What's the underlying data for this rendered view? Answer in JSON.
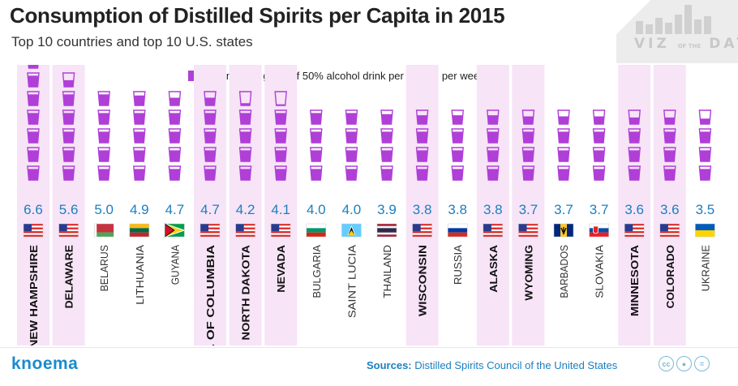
{
  "title": "Consumption of Distilled Spirits per Capita in 2015",
  "subtitle": "Top 10 countries and top 10 U.S. states",
  "branding": {
    "viz_text": "VIZ",
    "of_text": "OF THE",
    "day_text": "DAY",
    "icon": "bar-chart-logo-icon"
  },
  "legend": {
    "text": "– 45 ml shot glass of 50% alcohol drink per person per week",
    "color": "#b03fd8"
  },
  "colors": {
    "glass": "#b03fd8",
    "value": "#1a7fc0",
    "state_band": "#f7e4f7"
  },
  "chart_data": {
    "type": "bar",
    "unit": "45 ml shot glass of 50% alcohol drink per person per week",
    "categories": [
      "NEW HAMPSHIRE",
      "DELAWARE",
      "BELARUS",
      "LITHUANIA",
      "GUYANA",
      "DISTR. OF COLUMBIA",
      "NORTH DAKOTA",
      "NEVADA",
      "BULGARIA",
      "SAINT LUCIA",
      "THAILAND",
      "WISCONSIN",
      "RUSSIA",
      "ALASKA",
      "WYOMING",
      "BARBADOS",
      "SLOVAKIA",
      "MINNESOTA",
      "COLORADO",
      "UKRAINE"
    ],
    "values": [
      6.6,
      5.6,
      5.0,
      4.9,
      4.7,
      4.7,
      4.2,
      4.1,
      4.0,
      4.0,
      3.9,
      3.8,
      3.8,
      3.8,
      3.7,
      3.7,
      3.7,
      3.6,
      3.6,
      3.5
    ],
    "value_labels": [
      "6.6",
      "5.6",
      "5.0",
      "4.9",
      "4.7",
      "4.7",
      "4.2",
      "4.1",
      "4.0",
      "4.0",
      "3.9",
      "3.8",
      "3.8",
      "3.8",
      "3.7",
      "3.7",
      "3.7",
      "3.6",
      "3.6",
      "3.5"
    ],
    "is_us_state": [
      true,
      true,
      false,
      false,
      false,
      true,
      true,
      true,
      false,
      false,
      false,
      true,
      false,
      true,
      true,
      false,
      false,
      true,
      true,
      false
    ],
    "flags": [
      "us",
      "us",
      "belarus",
      "lithuania",
      "guyana",
      "us",
      "us",
      "us",
      "bulgaria",
      "saint-lucia",
      "thailand",
      "us",
      "russia",
      "us",
      "us",
      "barbados",
      "slovakia",
      "us",
      "us",
      "ukraine"
    ]
  },
  "footer": {
    "brand": "knoema",
    "sources_label": "Sources:",
    "sources_text": "Distilled Spirits Council of the United States",
    "license_icons": [
      "cc-icon",
      "by-icon",
      "nd-icon"
    ]
  }
}
